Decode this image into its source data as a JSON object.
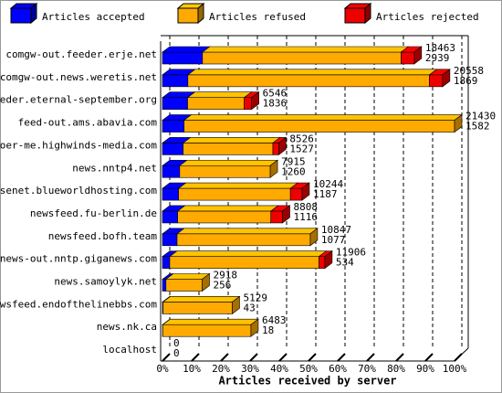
{
  "chart_data": {
    "type": "bar3d-stacked-horizontal",
    "xlabel": "Articles received by server",
    "categories": [
      "comgw-out.feeder.erje.net",
      "comgw-out.news.weretis.net",
      "feeder.eternal-september.org",
      "feed-out.ams.abavia.com",
      "voer-me.highwinds-media.com",
      "news.nntp4.net",
      "usenet.blueworldhosting.com",
      "newsfeed.fu-berlin.de",
      "newsfeed.bofh.team",
      "news-out.nntp.giganews.com",
      "news.samoylyk.net",
      "newsfeed.endofthelinebbs.com",
      "news.nk.ca",
      "localhost"
    ],
    "series": [
      {
        "name": "Articles accepted",
        "color": "#0000ff",
        "values": [
          13.7,
          8.7,
          8.6,
          7.4,
          7.1,
          5.9,
          5.5,
          5.2,
          5.0,
          2.5,
          1.2,
          0.2,
          0.1,
          0
        ]
      },
      {
        "name": "Articles refused",
        "color": "#ffaa00",
        "values": [
          68,
          82.7,
          19.4,
          92.6,
          30.7,
          31,
          38.3,
          31.9,
          45.6,
          51.1,
          12.4,
          23.7,
          30.2,
          0
        ]
      },
      {
        "name": "Articles rejected",
        "color": "#ee0000",
        "values": [
          4.5,
          4.5,
          2.5,
          0,
          2,
          0,
          4,
          4,
          0,
          2,
          0,
          0,
          0,
          0
        ]
      }
    ],
    "received": [
      18463,
      20558,
      6546,
      21430,
      8526,
      7915,
      10244,
      8808,
      10847,
      11906,
      2918,
      5129,
      6483,
      0
    ],
    "accepted_counts": [
      2939,
      1869,
      1836,
      1582,
      1527,
      1260,
      1187,
      1116,
      1077,
      534,
      256,
      43,
      18,
      0
    ],
    "xlim": [
      0,
      100
    ],
    "xticks": [
      {
        "value": 0,
        "label": "0%"
      },
      {
        "value": 10,
        "label": "10%"
      },
      {
        "value": 20,
        "label": "20%"
      },
      {
        "value": 30,
        "label": "30%"
      },
      {
        "value": 40,
        "label": "40%"
      },
      {
        "value": 50,
        "label": "50%"
      },
      {
        "value": 60,
        "label": "60%"
      },
      {
        "value": 70,
        "label": "70%"
      },
      {
        "value": 80,
        "label": "80%"
      },
      {
        "value": 90,
        "label": "90%"
      },
      {
        "value": 100,
        "label": "100%"
      }
    ],
    "grid": true
  }
}
